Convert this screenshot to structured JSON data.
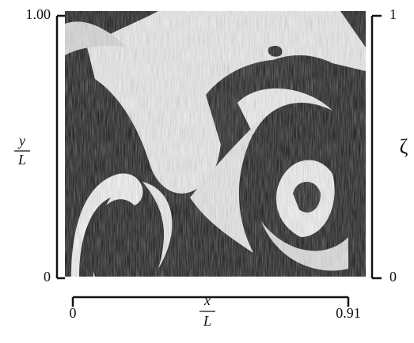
{
  "chart_data": {
    "type": "image",
    "x_label": {
      "numerator": "x",
      "denominator": "L"
    },
    "y_label": {
      "numerator": "y",
      "denominator": "L"
    },
    "colorbar_label": "ζ",
    "xlim": [
      0,
      0.91
    ],
    "xticks": [
      0,
      0.91
    ],
    "ylim": [
      0,
      1
    ],
    "yticks": [
      0,
      {
        "value": 1,
        "label": "1.00"
      }
    ],
    "zlim": [
      0,
      1
    ],
    "zticks": [
      0,
      1
    ]
  }
}
